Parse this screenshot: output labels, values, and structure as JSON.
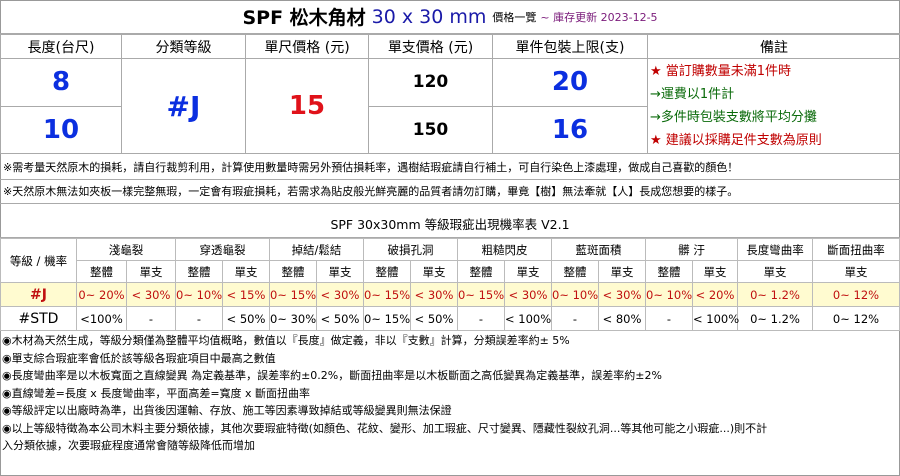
{
  "title": {
    "main": "SPF 松木角材",
    "size": "30 x 30 mm",
    "sub": "價格一覽",
    "updated": "~ 庫存更新 2023-12-5"
  },
  "price_table": {
    "headers": [
      "長度(台尺)",
      "分類等級",
      "單尺價格 (元)",
      "單支價格 (元)",
      "單件包裝上限(支)",
      "備註"
    ],
    "rows": [
      {
        "length": "8",
        "unit_price": "120",
        "pack_limit": "20"
      },
      {
        "length": "10",
        "unit_price": "150",
        "pack_limit": "16"
      }
    ],
    "grade": "#J",
    "price_per_foot": "15",
    "notes": [
      "★ 當訂購數量未滿1件時",
      "→運費以1件計",
      "→多件時包裝支數將平均分攤",
      "★ 建議以採購足件支數為原則"
    ]
  },
  "warnings": [
    "※需考量天然原木的損耗，請自行裁剪利用，計算使用數量時需另外預估損耗率，遇樹結瑕疵請自行補土，可自行染色上漆處理，做成自己喜歡的顏色！",
    "※天然原木無法如夾板一樣完整無瑕，一定會有瑕疵損耗，若需求為貼皮般光鮮亮麗的品質者請勿訂購，畢竟【樹】無法牽就【人】長成您想要的樣子。"
  ],
  "defect_table": {
    "title": "SPF 30x30mm 等級瑕疵出現機率表 V2.1",
    "corner": "等級 / 機率",
    "groups": [
      "淺龜裂",
      "穿透龜裂",
      "掉結/鬆結",
      "破損孔洞",
      "粗糙閃皮",
      "藍斑面積",
      "髒 汙",
      "長度彎曲率",
      "斷面扭曲率"
    ],
    "sub_whole": "整體",
    "sub_single": "單支",
    "rows": [
      {
        "grade": "#J",
        "cells": [
          "0~ 20%",
          "< 30%",
          "0~ 10%",
          "< 15%",
          "0~ 15%",
          "< 30%",
          "0~ 15%",
          "< 30%",
          "0~ 15%",
          "< 30%",
          "0~ 10%",
          "< 30%",
          "0~ 10%",
          "< 20%",
          "0~ 1.2%",
          "0~ 12%"
        ]
      },
      {
        "grade": "#STD",
        "cells": [
          "<100%",
          "-",
          "-",
          "< 50%",
          "0~ 30%",
          "< 50%",
          "0~ 15%",
          "< 50%",
          "-",
          "< 100%",
          "-",
          "< 80%",
          "-",
          "< 100%",
          "0~ 1.2%",
          "0~ 12%"
        ]
      }
    ]
  },
  "footnotes": [
    "◉木材為天然生成，等級分類僅為整體平均值概略，數值以『長度』做定義，非以『支數』計算，分類誤差率約± 5%",
    "◉單支綜合瑕疵率會低於該等級各瑕疵項目中最高之數值",
    "◉長度彎曲率是以木板寬面之直線變異 為定義基準，誤差率約±0.2%，斷面扭曲率是以木板斷面之高低變異為定義基準，誤差率約±2%",
    "◉直線彎差=長度 x 長度彎曲率，平面高差=寬度 x 斷面扭曲率",
    "◉等級評定以出廠時為準，出貨後因運輸、存放、施工等因素導致掉結或等級變異則無法保證",
    "◉以上等級特徵為本公司木料主要分類依據，其他次要瑕疵特徵(如顏色、花紋、變形、加工瑕疵、尺寸變異、隱藏性裂紋孔洞...等其他可能之小瑕疵...)則不計",
    "入分類依據，次要瑕疵程度通常會隨等級降低而增加"
  ]
}
